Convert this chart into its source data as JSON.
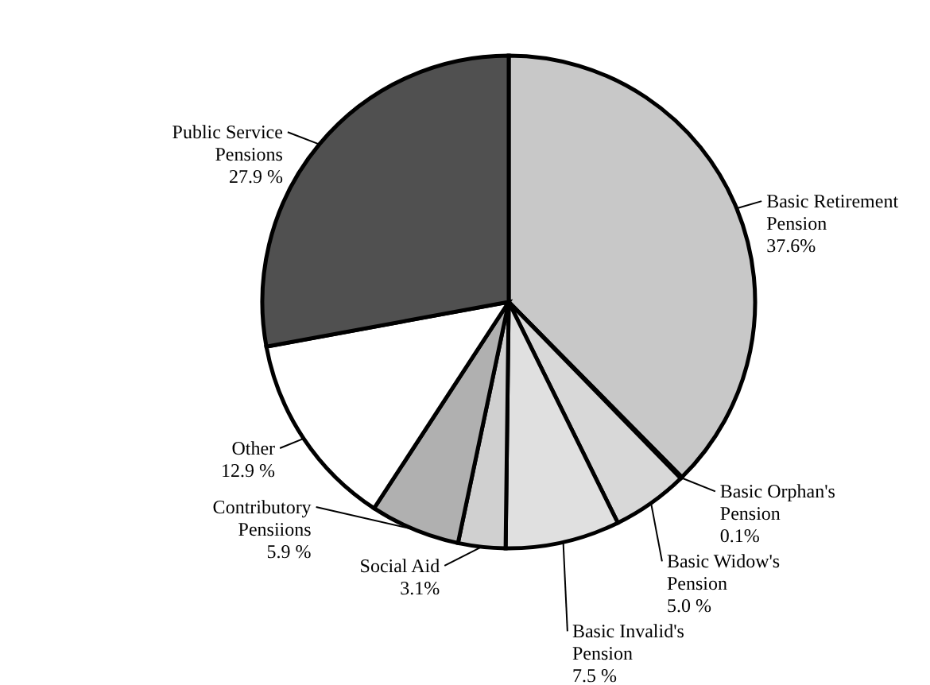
{
  "chart_data": {
    "type": "pie",
    "categories": [
      "Basic Retirement Pension",
      "Basic Orphan's Pension",
      "Basic Widow's Pension",
      "Basic Invalid's Pension",
      "Social Aid",
      "Contributory Pensiions",
      "Other",
      "Public Service Pensions"
    ],
    "values": [
      37.6,
      0.1,
      5.0,
      7.5,
      3.1,
      5.9,
      12.9,
      27.9
    ],
    "value_labels": [
      "37.6%",
      "0.1%",
      "5.0  %",
      "7.5 %",
      "3.1%",
      "5.9 %",
      "12.9 %",
      "27.9 %"
    ],
    "colors": [
      "#c8c8c8",
      "#ffffff",
      "#d8d8d8",
      "#e0e0e0",
      "#d0d0d0",
      "#b0b0b0",
      "#ffffff",
      "#505050"
    ]
  }
}
